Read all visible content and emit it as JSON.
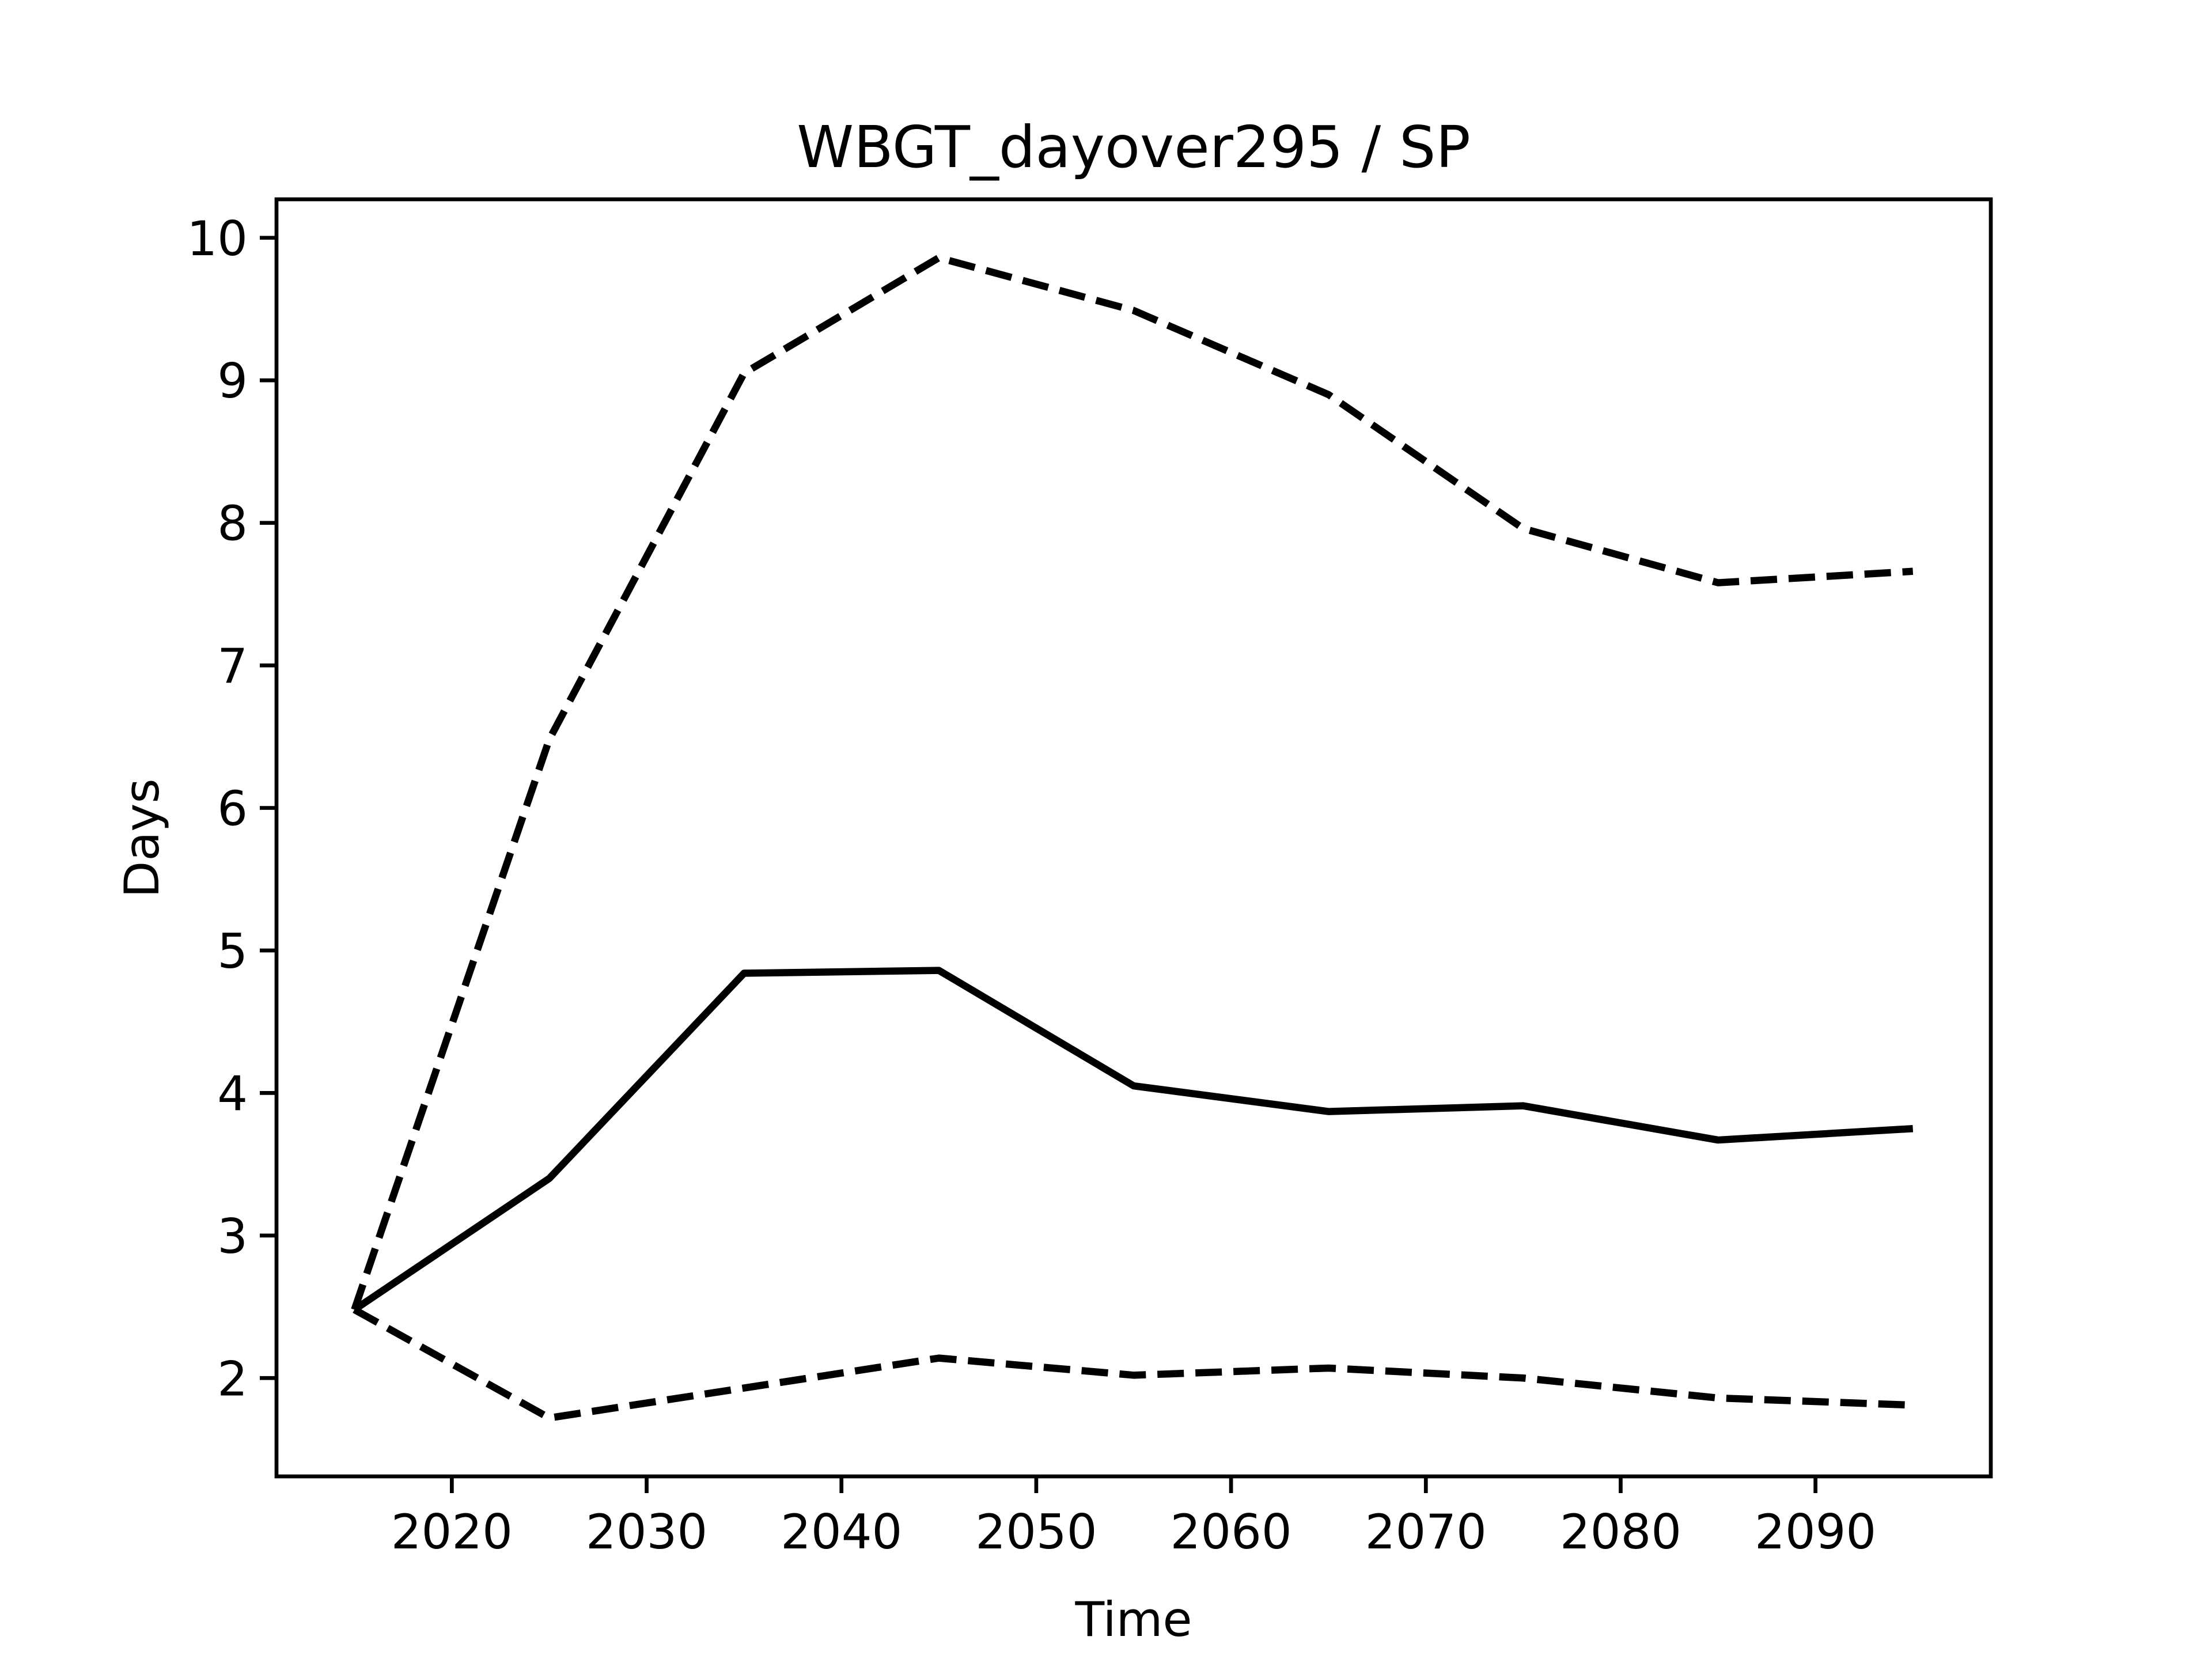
{
  "chart_data": {
    "type": "line",
    "title": "WBGT_dayover295 / SP",
    "xlabel": "Time",
    "ylabel": "Days",
    "x": [
      2015,
      2025,
      2035,
      2045,
      2055,
      2065,
      2075,
      2085,
      2095
    ],
    "xlim": [
      2011,
      2099
    ],
    "ylim": [
      1.31,
      10.27
    ],
    "xticks": [
      2020,
      2030,
      2040,
      2050,
      2060,
      2070,
      2080,
      2090
    ],
    "yticks": [
      2,
      3,
      4,
      5,
      6,
      7,
      8,
      9,
      10
    ],
    "grid": false,
    "series": [
      {
        "style": "solid",
        "color": "#000000",
        "values": [
          2.48,
          3.4,
          4.84,
          4.86,
          4.05,
          3.87,
          3.91,
          3.67,
          3.75
        ]
      },
      {
        "style": "dashed",
        "color": "#000000",
        "values": [
          2.48,
          6.48,
          9.05,
          9.86,
          9.49,
          8.9,
          7.96,
          7.58,
          7.66
        ]
      },
      {
        "style": "dashed",
        "color": "#000000",
        "values": [
          2.48,
          1.72,
          1.93,
          2.14,
          2.02,
          2.07,
          2.0,
          1.86,
          1.81
        ]
      }
    ]
  }
}
